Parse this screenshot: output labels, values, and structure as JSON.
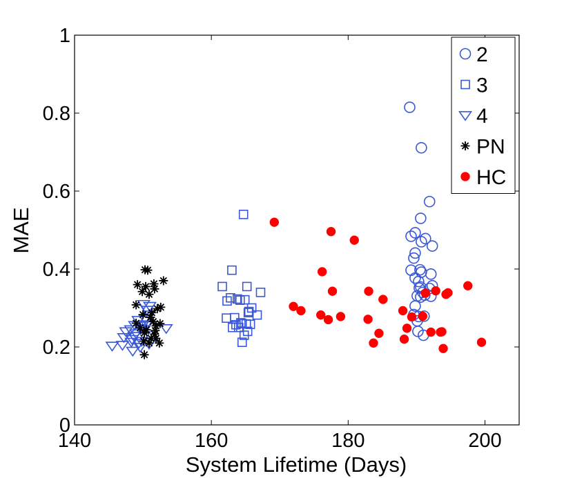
{
  "chart_data": {
    "type": "scatter",
    "title": "",
    "xlabel": "System Lifetime (Days)",
    "ylabel": "MAE",
    "xlim": [
      140,
      205
    ],
    "ylim": [
      0,
      1
    ],
    "xticks": [
      140,
      160,
      180,
      200
    ],
    "yticks": [
      0,
      0.2,
      0.4,
      0.6,
      0.8,
      1
    ],
    "xtick_labels": [
      "140",
      "160",
      "180",
      "200"
    ],
    "ytick_labels": [
      "0",
      "0.2",
      "0.4",
      "0.6",
      "0.8",
      "1"
    ],
    "legend_position": "top-right",
    "grid": false,
    "series": [
      {
        "name": "2",
        "marker": "circle",
        "color": "#3a57d6",
        "points": [
          [
            189.0,
            0.815
          ],
          [
            190.7,
            0.711
          ],
          [
            191.9,
            0.573
          ],
          [
            190.6,
            0.53
          ],
          [
            189.8,
            0.493
          ],
          [
            189.2,
            0.484
          ],
          [
            191.3,
            0.478
          ],
          [
            190.7,
            0.47
          ],
          [
            192.3,
            0.459
          ],
          [
            189.8,
            0.441
          ],
          [
            189.6,
            0.428
          ],
          [
            189.2,
            0.397
          ],
          [
            190.5,
            0.398
          ],
          [
            190.7,
            0.392
          ],
          [
            192.1,
            0.387
          ],
          [
            189.8,
            0.377
          ],
          [
            190.3,
            0.368
          ],
          [
            192.3,
            0.357
          ],
          [
            190.6,
            0.354
          ],
          [
            190.4,
            0.351
          ],
          [
            191.9,
            0.35
          ],
          [
            190.1,
            0.331
          ],
          [
            190.6,
            0.328
          ],
          [
            192.1,
            0.33
          ],
          [
            190.9,
            0.34
          ],
          [
            191.2,
            0.333
          ],
          [
            189.8,
            0.305
          ],
          [
            190.3,
            0.278
          ],
          [
            191.1,
            0.279
          ],
          [
            190.1,
            0.267
          ],
          [
            189.6,
            0.283
          ],
          [
            190.2,
            0.24
          ],
          [
            191.0,
            0.23
          ]
        ]
      },
      {
        "name": "3",
        "marker": "square",
        "color": "#3a57d6",
        "points": [
          [
            164.7,
            0.54
          ],
          [
            163.0,
            0.397
          ],
          [
            165.2,
            0.355
          ],
          [
            161.6,
            0.355
          ],
          [
            167.2,
            0.34
          ],
          [
            162.8,
            0.326
          ],
          [
            163.8,
            0.323
          ],
          [
            162.3,
            0.318
          ],
          [
            164.9,
            0.321
          ],
          [
            164.2,
            0.32
          ],
          [
            165.9,
            0.3
          ],
          [
            165.5,
            0.291
          ],
          [
            166.7,
            0.282
          ],
          [
            165.4,
            0.288
          ],
          [
            163.4,
            0.275
          ],
          [
            162.2,
            0.274
          ],
          [
            164.3,
            0.262
          ],
          [
            165.1,
            0.259
          ],
          [
            163.6,
            0.257
          ],
          [
            164.5,
            0.26
          ],
          [
            165.7,
            0.258
          ],
          [
            163.1,
            0.25
          ],
          [
            164.0,
            0.25
          ],
          [
            165.3,
            0.24
          ],
          [
            164.8,
            0.23
          ],
          [
            164.5,
            0.212
          ]
        ]
      },
      {
        "name": "4",
        "marker": "triangle-down",
        "color": "#3a57d6",
        "points": [
          [
            150.1,
            0.31
          ],
          [
            151.0,
            0.305
          ],
          [
            150.6,
            0.295
          ],
          [
            150.9,
            0.283
          ],
          [
            150.3,
            0.272
          ],
          [
            149.3,
            0.269
          ],
          [
            150.5,
            0.258
          ],
          [
            149.9,
            0.255
          ],
          [
            148.8,
            0.256
          ],
          [
            149.7,
            0.248
          ],
          [
            150.2,
            0.245
          ],
          [
            153.4,
            0.248
          ],
          [
            148.2,
            0.245
          ],
          [
            147.5,
            0.24
          ],
          [
            149.0,
            0.235
          ],
          [
            150.2,
            0.23
          ],
          [
            148.7,
            0.228
          ],
          [
            147.2,
            0.225
          ],
          [
            148.4,
            0.22
          ],
          [
            149.8,
            0.215
          ],
          [
            148.3,
            0.213
          ],
          [
            149.4,
            0.21
          ],
          [
            150.9,
            0.208
          ],
          [
            145.5,
            0.203
          ],
          [
            147.0,
            0.205
          ],
          [
            149.6,
            0.2
          ],
          [
            148.5,
            0.19
          ]
        ]
      },
      {
        "name": "PN",
        "marker": "asterisk",
        "color": "#000000",
        "points": [
          [
            150.3,
            0.398
          ],
          [
            150.7,
            0.397
          ],
          [
            153.0,
            0.37
          ],
          [
            151.6,
            0.362
          ],
          [
            149.2,
            0.36
          ],
          [
            150.4,
            0.355
          ],
          [
            151.7,
            0.349
          ],
          [
            149.9,
            0.342
          ],
          [
            150.9,
            0.335
          ],
          [
            149.0,
            0.308
          ],
          [
            152.6,
            0.302
          ],
          [
            152.1,
            0.298
          ],
          [
            151.3,
            0.288
          ],
          [
            150.0,
            0.283
          ],
          [
            151.1,
            0.276
          ],
          [
            151.5,
            0.265
          ],
          [
            152.5,
            0.26
          ],
          [
            149.0,
            0.261
          ],
          [
            151.9,
            0.254
          ],
          [
            149.6,
            0.249
          ],
          [
            150.5,
            0.244
          ],
          [
            151.8,
            0.242
          ],
          [
            150.2,
            0.236
          ],
          [
            151.7,
            0.233
          ],
          [
            151.9,
            0.222
          ],
          [
            152.4,
            0.21
          ],
          [
            150.9,
            0.21
          ],
          [
            151.2,
            0.222
          ],
          [
            150.1,
            0.215
          ],
          [
            150.2,
            0.18
          ]
        ]
      },
      {
        "name": "HC",
        "marker": "filled-circle",
        "color": "#ff0000",
        "points": [
          [
            169.2,
            0.52
          ],
          [
            177.5,
            0.496
          ],
          [
            180.9,
            0.474
          ],
          [
            176.2,
            0.393
          ],
          [
            177.7,
            0.343
          ],
          [
            183.0,
            0.343
          ],
          [
            185.1,
            0.322
          ],
          [
            172.0,
            0.304
          ],
          [
            173.1,
            0.293
          ],
          [
            176.0,
            0.282
          ],
          [
            178.9,
            0.278
          ],
          [
            177.1,
            0.27
          ],
          [
            188.0,
            0.293
          ],
          [
            182.9,
            0.271
          ],
          [
            189.3,
            0.277
          ],
          [
            190.9,
            0.279
          ],
          [
            191.3,
            0.338
          ],
          [
            192.8,
            0.344
          ],
          [
            194.6,
            0.339
          ],
          [
            194.3,
            0.335
          ],
          [
            197.5,
            0.357
          ],
          [
            188.6,
            0.248
          ],
          [
            192.1,
            0.238
          ],
          [
            193.7,
            0.239
          ],
          [
            193.5,
            0.238
          ],
          [
            184.5,
            0.235
          ],
          [
            188.2,
            0.22
          ],
          [
            183.7,
            0.21
          ],
          [
            193.9,
            0.196
          ],
          [
            199.5,
            0.212
          ]
        ]
      }
    ]
  }
}
